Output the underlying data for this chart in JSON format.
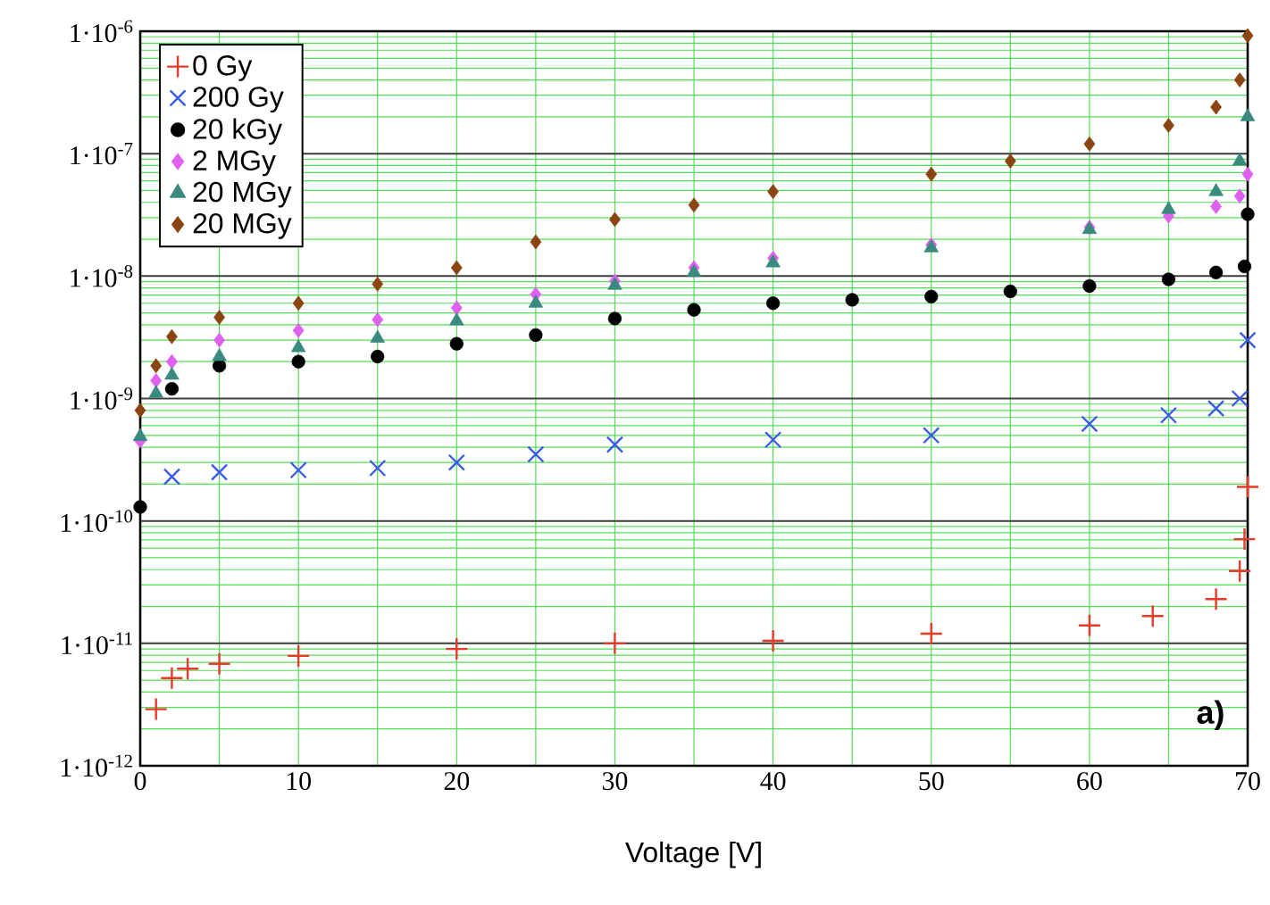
{
  "chart_data": {
    "type": "scatter",
    "xlabel": "Voltage [V]",
    "log": "y",
    "grid": true,
    "legend": "top left",
    "xlim": [
      0,
      70
    ],
    "xticks": [
      0,
      10,
      20,
      30,
      40,
      50,
      60,
      70
    ],
    "ylim": [
      1e-12,
      1e-06
    ],
    "yticks": [
      {
        "value": 1e-12,
        "label": "1·10$^{-12}$"
      },
      {
        "value": 1e-11,
        "label": "1·10$^{-11}$"
      },
      {
        "value": 1e-10,
        "label": "1·10$^{-10}$"
      },
      {
        "value": 1e-09,
        "label": "1·10$^{-9}$"
      },
      {
        "value": 1e-08,
        "label": "1·10$^{-8}$"
      },
      {
        "value": 1e-07,
        "label": "1·10$^{-7}$"
      },
      {
        "value": 1e-06,
        "label": "1·10$^{-6}$"
      }
    ],
    "annotations": [
      "a)"
    ],
    "series": [
      {
        "name": "0 Gy",
        "color": "#e8392a",
        "x": [
          1,
          2,
          3,
          5,
          10,
          20,
          30,
          40,
          50,
          60,
          64,
          68,
          69.5,
          69.8,
          70
        ],
        "values": [
          2.9e-12,
          5.2e-12,
          6.2e-12,
          6.8e-12,
          7.9e-12,
          9e-12,
          1e-11,
          1.05e-11,
          1.2e-11,
          1.4e-11,
          1.67e-11,
          2.3e-11,
          3.9e-11,
          7.1e-11,
          1.9e-10
        ]
      },
      {
        "name": "200 Gy",
        "color": "#3c5ce6",
        "marker": "cross",
        "x": [
          2,
          5,
          10,
          15,
          20,
          25,
          30,
          40,
          50,
          60,
          65,
          68,
          69.5,
          70
        ],
        "values": [
          2.3e-10,
          2.5e-10,
          2.6e-10,
          2.7e-10,
          3e-10,
          3.5e-10,
          4.2e-10,
          4.6e-10,
          5e-10,
          6.2e-10,
          7.3e-10,
          8.3e-10,
          1e-09,
          3e-09
        ]
      },
      {
        "name": "20 kGy",
        "color": "#000000",
        "marker": "circle",
        "x": [
          0,
          2,
          5,
          10,
          15,
          20,
          25,
          30,
          35,
          40,
          45,
          50,
          55,
          60,
          65,
          68,
          69.8,
          70
        ],
        "values": [
          1.3e-10,
          1.2e-09,
          1.85e-09,
          2e-09,
          2.2e-09,
          2.8e-09,
          3.3e-09,
          4.5e-09,
          5.3e-09,
          6e-09,
          6.4e-09,
          6.8e-09,
          7.5e-09,
          8.3e-09,
          9.4e-09,
          1.07e-08,
          1.2e-08,
          3.2e-08
        ]
      },
      {
        "name": "2 MGy",
        "color": "#e060f0",
        "marker": "diamond",
        "x": [
          0,
          1,
          2,
          5,
          10,
          15,
          20,
          25,
          30,
          35,
          40,
          50,
          60,
          65,
          68,
          69.5,
          70
        ],
        "values": [
          4.5e-10,
          1.4e-09,
          2e-09,
          3e-09,
          3.6e-09,
          4.4e-09,
          5.5e-09,
          7.1e-09,
          9.1e-09,
          1.17e-08,
          1.4e-08,
          1.8e-08,
          2.5e-08,
          3.1e-08,
          3.7e-08,
          4.5e-08,
          6.8e-08
        ]
      },
      {
        "name": "20 MGy",
        "color": "#3a8a80",
        "marker": "triangle",
        "x": [
          0,
          1,
          2,
          5,
          10,
          15,
          20,
          25,
          30,
          35,
          40,
          50,
          60,
          65,
          68,
          69.5,
          70
        ],
        "values": [
          4.9e-10,
          1.1e-09,
          1.55e-09,
          2.2e-09,
          2.6e-09,
          3.1e-09,
          4.3e-09,
          6e-09,
          8.4e-09,
          1.07e-08,
          1.28e-08,
          1.7e-08,
          2.4e-08,
          3.5e-08,
          4.9e-08,
          8.7e-08,
          2e-07
        ]
      },
      {
        "name": "20 MGy",
        "color": "#8b4513",
        "marker": "diamond",
        "x": [
          0,
          1,
          2,
          5,
          10,
          15,
          20,
          25,
          30,
          35,
          40,
          50,
          55,
          60,
          65,
          68,
          69.5,
          70
        ],
        "values": [
          8e-10,
          1.85e-09,
          3.2e-09,
          4.6e-09,
          6e-09,
          8.6e-09,
          1.17e-08,
          1.9e-08,
          2.9e-08,
          3.8e-08,
          4.9e-08,
          6.8e-08,
          8.7e-08,
          1.2e-07,
          1.7e-07,
          2.4e-07,
          4e-07,
          9.2e-07
        ]
      }
    ]
  }
}
